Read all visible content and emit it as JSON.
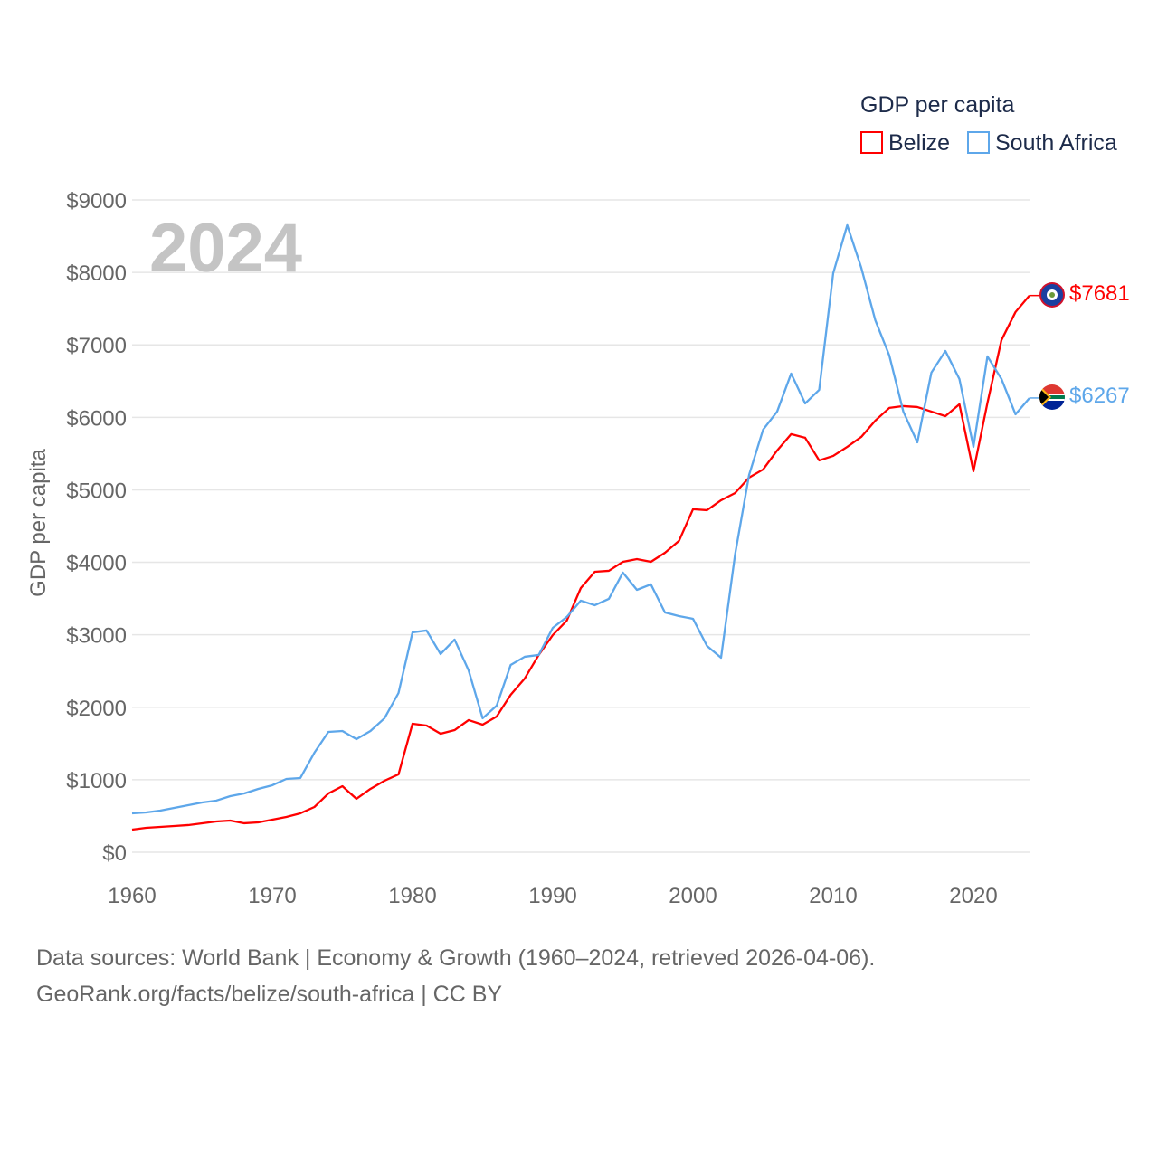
{
  "chart_data": {
    "type": "line",
    "title": "GDP per capita",
    "year_label": "2024",
    "ylabel": "GDP per capita",
    "xlabel": "",
    "xlim": [
      1960,
      2024
    ],
    "ylim": [
      0,
      9000
    ],
    "x_ticks": [
      "1960",
      "1970",
      "1980",
      "1990",
      "2000",
      "2010",
      "2020"
    ],
    "x_tick_values": [
      1960,
      1970,
      1980,
      1990,
      2000,
      2010,
      2020
    ],
    "y_ticks": [
      "$0",
      "$1000",
      "$2000",
      "$3000",
      "$4000",
      "$5000",
      "$6000",
      "$7000",
      "$8000",
      "$9000"
    ],
    "y_tick_values": [
      0,
      1000,
      2000,
      3000,
      4000,
      5000,
      6000,
      7000,
      8000,
      9000
    ],
    "grid": true,
    "legend_placement": "top-right",
    "series": [
      {
        "name": "Belize",
        "color": "#ff0000",
        "end_label": "$7681",
        "values": [
          312,
          337,
          350,
          362,
          375,
          400,
          424,
          437,
          400,
          412,
          449,
          487,
          537,
          624,
          811,
          911,
          737,
          874,
          986,
          1074,
          1773,
          1748,
          1635,
          1685,
          1823,
          1760,
          1873,
          2172,
          2397,
          2722,
          2996,
          3196,
          3645,
          3870,
          3883,
          4007,
          4045,
          4007,
          4132,
          4295,
          4732,
          4719,
          4856,
          4956,
          5169,
          5281,
          5543,
          5768,
          5718,
          5406,
          5468,
          5593,
          5730,
          5955,
          6130,
          6155,
          6142,
          6080,
          6017,
          6180,
          5256,
          6200,
          7066,
          7453,
          7681
        ]
      },
      {
        "name": "South Africa",
        "color": "#5ea7ea",
        "end_label": "$6267",
        "values": [
          537,
          549,
          574,
          612,
          649,
          687,
          712,
          774,
          811,
          874,
          924,
          1011,
          1024,
          1373,
          1660,
          1673,
          1560,
          1673,
          1848,
          2197,
          3034,
          3059,
          2734,
          2934,
          2509,
          1848,
          2022,
          2584,
          2697,
          2722,
          3096,
          3246,
          3471,
          3408,
          3496,
          3858,
          3620,
          3695,
          3308,
          3258,
          3221,
          2846,
          2684,
          4107,
          5206,
          5830,
          6080,
          6604,
          6192,
          6380,
          7990,
          8652,
          8065,
          7341,
          6854,
          6080,
          5655,
          6617,
          6916,
          6529,
          5593,
          6841,
          6529,
          6042,
          6267
        ]
      }
    ]
  },
  "footer": {
    "line1": "Data sources: World Bank | Economy & Growth (1960–2024, retrieved 2026-04-06).",
    "line2": "GeoRank.org/facts/belize/south-africa | CC BY"
  }
}
